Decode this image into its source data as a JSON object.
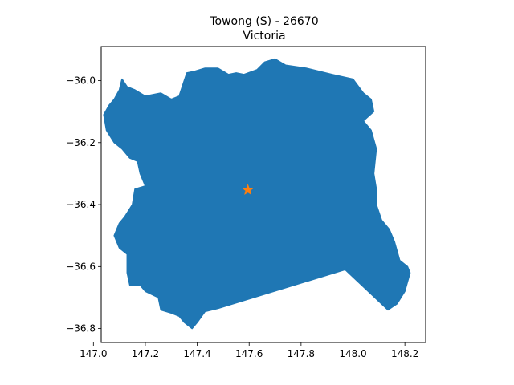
{
  "chart_data": {
    "type": "map",
    "title": "Towong (S) - 26670",
    "subtitle": "Victoria",
    "xlabel": "",
    "ylabel": "",
    "xlim": [
      147.03,
      148.28
    ],
    "ylim": [
      -36.845,
      -35.89
    ],
    "x_ticks": [
      147.0,
      147.2,
      147.4,
      147.6,
      147.8,
      148.0,
      148.2
    ],
    "x_tick_labels": [
      "147.0",
      "147.2",
      "147.4",
      "147.6",
      "147.8",
      "148.0",
      "148.2"
    ],
    "y_ticks": [
      -36.0,
      -36.2,
      -36.4,
      -36.6,
      -36.8
    ],
    "y_tick_labels": [
      "−36.0",
      "−36.2",
      "−36.4",
      "−36.6",
      "−36.8"
    ],
    "grid": false,
    "region": {
      "name": "Towong (S)",
      "fill_color": "#1f77b4",
      "boundary": [
        [
          147.58,
          -35.98
        ],
        [
          147.63,
          -35.965
        ],
        [
          147.66,
          -35.94
        ],
        [
          147.7,
          -35.93
        ],
        [
          147.74,
          -35.95
        ],
        [
          147.82,
          -35.96
        ],
        [
          147.92,
          -35.98
        ],
        [
          148.0,
          -35.995
        ],
        [
          148.04,
          -36.04
        ],
        [
          148.07,
          -36.06
        ],
        [
          148.08,
          -36.1
        ],
        [
          148.04,
          -36.13
        ],
        [
          148.07,
          -36.16
        ],
        [
          148.09,
          -36.22
        ],
        [
          148.08,
          -36.3
        ],
        [
          148.09,
          -36.35
        ],
        [
          148.09,
          -36.4
        ],
        [
          148.11,
          -36.45
        ],
        [
          148.14,
          -36.48
        ],
        [
          148.16,
          -36.52
        ],
        [
          148.18,
          -36.58
        ],
        [
          148.21,
          -36.6
        ],
        [
          148.22,
          -36.62
        ],
        [
          148.2,
          -36.68
        ],
        [
          148.17,
          -36.72
        ],
        [
          148.135,
          -36.74
        ],
        [
          147.97,
          -36.61
        ],
        [
          147.48,
          -36.735
        ],
        [
          147.43,
          -36.745
        ],
        [
          147.4,
          -36.78
        ],
        [
          147.38,
          -36.8
        ],
        [
          147.35,
          -36.78
        ],
        [
          147.33,
          -36.76
        ],
        [
          147.3,
          -36.75
        ],
        [
          147.26,
          -36.74
        ],
        [
          147.25,
          -36.7
        ],
        [
          147.2,
          -36.68
        ],
        [
          147.18,
          -36.66
        ],
        [
          147.14,
          -36.66
        ],
        [
          147.13,
          -36.62
        ],
        [
          147.13,
          -36.56
        ],
        [
          147.1,
          -36.54
        ],
        [
          147.08,
          -36.5
        ],
        [
          147.1,
          -36.46
        ],
        [
          147.12,
          -36.44
        ],
        [
          147.15,
          -36.4
        ],
        [
          147.16,
          -36.35
        ],
        [
          147.2,
          -36.34
        ],
        [
          147.18,
          -36.3
        ],
        [
          147.17,
          -36.26
        ],
        [
          147.14,
          -36.25
        ],
        [
          147.11,
          -36.22
        ],
        [
          147.08,
          -36.2
        ],
        [
          147.05,
          -36.16
        ],
        [
          147.04,
          -36.11
        ],
        [
          147.06,
          -36.08
        ],
        [
          147.08,
          -36.06
        ],
        [
          147.1,
          -36.03
        ],
        [
          147.11,
          -35.995
        ],
        [
          147.13,
          -36.02
        ],
        [
          147.16,
          -36.03
        ],
        [
          147.2,
          -36.05
        ],
        [
          147.26,
          -36.04
        ],
        [
          147.3,
          -36.06
        ],
        [
          147.33,
          -36.05
        ],
        [
          147.35,
          -36.0
        ],
        [
          147.36,
          -35.975
        ],
        [
          147.39,
          -35.97
        ],
        [
          147.43,
          -35.96
        ],
        [
          147.48,
          -35.96
        ],
        [
          147.52,
          -35.98
        ],
        [
          147.55,
          -35.975
        ]
      ]
    },
    "marker": {
      "symbol": "star",
      "x": 147.595,
      "y": -36.353,
      "color": "#ff7f0e"
    }
  }
}
